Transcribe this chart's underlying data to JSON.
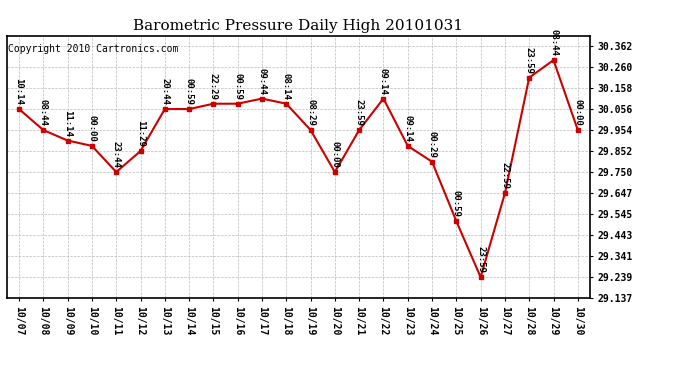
{
  "title": "Barometric Pressure Daily High 20101031",
  "copyright": "Copyright 2010 Cartronics.com",
  "x_labels": [
    "10/07",
    "10/08",
    "10/09",
    "10/10",
    "10/11",
    "10/12",
    "10/13",
    "10/14",
    "10/15",
    "10/16",
    "10/17",
    "10/18",
    "10/19",
    "10/20",
    "10/21",
    "10/22",
    "10/23",
    "10/24",
    "10/25",
    "10/26",
    "10/27",
    "10/28",
    "10/29",
    "10/30"
  ],
  "y_values": [
    30.056,
    29.954,
    29.903,
    29.877,
    29.75,
    29.852,
    30.056,
    30.056,
    30.082,
    30.082,
    30.107,
    30.082,
    29.954,
    29.75,
    29.954,
    30.107,
    29.877,
    29.8,
    29.511,
    29.239,
    29.647,
    30.209,
    30.294,
    29.954
  ],
  "time_labels": [
    "10:14",
    "08:44",
    "11:14",
    "00:00",
    "23:44",
    "11:29",
    "20:44",
    "00:59",
    "22:29",
    "00:59",
    "09:44",
    "08:14",
    "08:29",
    "00:00",
    "23:59",
    "09:14",
    "09:14",
    "00:29",
    "00:59",
    "23:59",
    "22:59",
    "23:59",
    "08:44",
    "00:00"
  ],
  "y_ticks": [
    29.137,
    29.239,
    29.341,
    29.443,
    29.545,
    29.647,
    29.75,
    29.852,
    29.954,
    30.056,
    30.158,
    30.26,
    30.362
  ],
  "y_min": 29.137,
  "y_max": 30.413,
  "line_color": "#cc0000",
  "marker_color": "#cc0000",
  "bg_color": "#ffffff",
  "grid_color": "#bbbbbb",
  "title_fontsize": 11,
  "copyright_fontsize": 7,
  "tick_fontsize": 7,
  "label_fontsize": 6.5
}
